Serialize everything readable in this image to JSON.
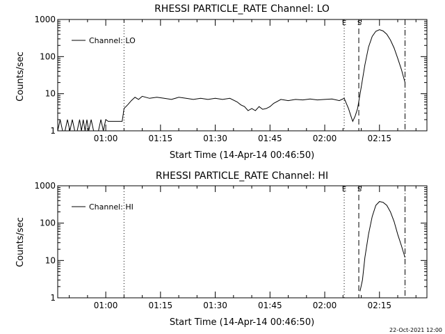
{
  "footer_timestamp": "22-Oct-2021 12:00",
  "chart_data": [
    {
      "type": "line",
      "title": "RHESSI PARTICLE_RATE Channel: LO",
      "xlabel": "Start Time (14-Apr-14 00:46:50)",
      "ylabel": "Counts/sec",
      "y_scale": "log",
      "ylim": [
        1,
        1000
      ],
      "xlim": [
        "00:46:50",
        "02:28:00"
      ],
      "x_ticks": [
        "01:00",
        "01:15",
        "01:30",
        "01:45",
        "02:00",
        "02:15"
      ],
      "y_ticks": [
        "1",
        "10",
        "100",
        "1000"
      ],
      "legend": {
        "label": "Channel: LO",
        "placement": "top-left"
      },
      "markers": [
        {
          "label": "",
          "time": "01:05:00",
          "style": "dotted"
        },
        {
          "label": "E",
          "time": "02:05:20",
          "style": "dotted"
        },
        {
          "label": "S",
          "time": "02:09:20",
          "style": "dashed"
        },
        {
          "label": "",
          "time": "02:22:00",
          "style": "dash-dot"
        }
      ],
      "series": [
        {
          "name": "Channel: LO",
          "points": [
            [
              "00:46:50",
              1
            ],
            [
              "00:47:30",
              2
            ],
            [
              "00:48:10",
              1
            ],
            [
              "00:48:50",
              1
            ],
            [
              "00:49:30",
              2
            ],
            [
              "00:50:10",
              1
            ],
            [
              "00:50:50",
              2
            ],
            [
              "00:51:30",
              1
            ],
            [
              "00:52:10",
              1
            ],
            [
              "00:52:50",
              2
            ],
            [
              "00:53:20",
              1
            ],
            [
              "00:53:50",
              2
            ],
            [
              "00:54:20",
              1
            ],
            [
              "00:54:50",
              2
            ],
            [
              "00:55:20",
              1
            ],
            [
              "00:56:00",
              2
            ],
            [
              "00:56:40",
              1
            ],
            [
              "00:57:20",
              1
            ],
            [
              "00:58:00",
              1
            ],
            [
              "00:58:40",
              2
            ],
            [
              "00:59:20",
              1
            ],
            [
              "01:00:00",
              2
            ],
            [
              "01:00:40",
              1.8
            ],
            [
              "01:02:00",
              1.8
            ],
            [
              "01:04:30",
              1.8
            ],
            [
              "01:05:00",
              4
            ],
            [
              "01:06:00",
              5
            ],
            [
              "01:07:00",
              6.5
            ],
            [
              "01:08:00",
              8
            ],
            [
              "01:09:00",
              7
            ],
            [
              "01:10:00",
              8.5
            ],
            [
              "01:12:00",
              7.5
            ],
            [
              "01:14:00",
              8
            ],
            [
              "01:16:00",
              7.5
            ],
            [
              "01:18:00",
              7
            ],
            [
              "01:20:00",
              8
            ],
            [
              "01:22:00",
              7.5
            ],
            [
              "01:24:00",
              7
            ],
            [
              "01:26:00",
              7.5
            ],
            [
              "01:28:00",
              7
            ],
            [
              "01:30:00",
              7.5
            ],
            [
              "01:32:00",
              7
            ],
            [
              "01:34:00",
              7.5
            ],
            [
              "01:36:00",
              6
            ],
            [
              "01:37:00",
              5
            ],
            [
              "01:38:00",
              4.5
            ],
            [
              "01:39:00",
              3.5
            ],
            [
              "01:40:00",
              4
            ],
            [
              "01:41:00",
              3.5
            ],
            [
              "01:42:00",
              4.5
            ],
            [
              "01:43:00",
              3.8
            ],
            [
              "01:44:00",
              4
            ],
            [
              "01:45:00",
              4.5
            ],
            [
              "01:46:00",
              5.5
            ],
            [
              "01:48:00",
              7
            ],
            [
              "01:50:00",
              6.5
            ],
            [
              "01:52:00",
              7
            ],
            [
              "01:54:00",
              6.8
            ],
            [
              "01:56:00",
              7.2
            ],
            [
              "01:58:00",
              6.8
            ],
            [
              "02:00:00",
              7
            ],
            [
              "02:02:00",
              7.2
            ],
            [
              "02:04:00",
              6.5
            ],
            [
              "02:05:20",
              7.5
            ],
            [
              "02:06:30",
              4
            ],
            [
              "02:07:10",
              2.5
            ],
            [
              "02:07:40",
              1.8
            ],
            [
              "02:08:20",
              2.5
            ],
            [
              "02:09:00",
              4
            ],
            [
              "02:10:00",
              15
            ],
            [
              "02:11:00",
              60
            ],
            [
              "02:12:00",
              180
            ],
            [
              "02:13:00",
              350
            ],
            [
              "02:14:00",
              480
            ],
            [
              "02:15:00",
              530
            ],
            [
              "02:16:00",
              490
            ],
            [
              "02:17:00",
              400
            ],
            [
              "02:18:00",
              280
            ],
            [
              "02:19:00",
              170
            ],
            [
              "02:20:00",
              90
            ],
            [
              "02:21:00",
              45
            ],
            [
              "02:22:00",
              20
            ]
          ]
        }
      ]
    },
    {
      "type": "line",
      "title": "RHESSI PARTICLE_RATE Channel: HI",
      "xlabel": "Start Time (14-Apr-14 00:46:50)",
      "ylabel": "Counts/sec",
      "y_scale": "log",
      "ylim": [
        1,
        1000
      ],
      "xlim": [
        "00:46:50",
        "02:28:00"
      ],
      "x_ticks": [
        "01:00",
        "01:15",
        "01:30",
        "01:45",
        "02:00",
        "02:15"
      ],
      "y_ticks": [
        "1",
        "10",
        "100",
        "1000"
      ],
      "legend": {
        "label": "Channel: HI",
        "placement": "top-left"
      },
      "markers": [
        {
          "label": "",
          "time": "01:05:00",
          "style": "dotted"
        },
        {
          "label": "E",
          "time": "02:05:20",
          "style": "dotted"
        },
        {
          "label": "S",
          "time": "02:09:20",
          "style": "dashed"
        },
        {
          "label": "",
          "time": "02:22:00",
          "style": "dash-dot"
        }
      ],
      "series": [
        {
          "name": "Channel: HI",
          "points": [
            [
              "02:09:40",
              1.5
            ],
            [
              "02:10:20",
              3
            ],
            [
              "02:11:00",
              12
            ],
            [
              "02:12:00",
              50
            ],
            [
              "02:13:00",
              150
            ],
            [
              "02:14:00",
              300
            ],
            [
              "02:15:00",
              380
            ],
            [
              "02:16:00",
              360
            ],
            [
              "02:17:00",
              300
            ],
            [
              "02:18:00",
              200
            ],
            [
              "02:19:00",
              110
            ],
            [
              "02:20:00",
              50
            ],
            [
              "02:21:00",
              25
            ],
            [
              "02:22:00",
              12
            ]
          ]
        }
      ]
    }
  ]
}
